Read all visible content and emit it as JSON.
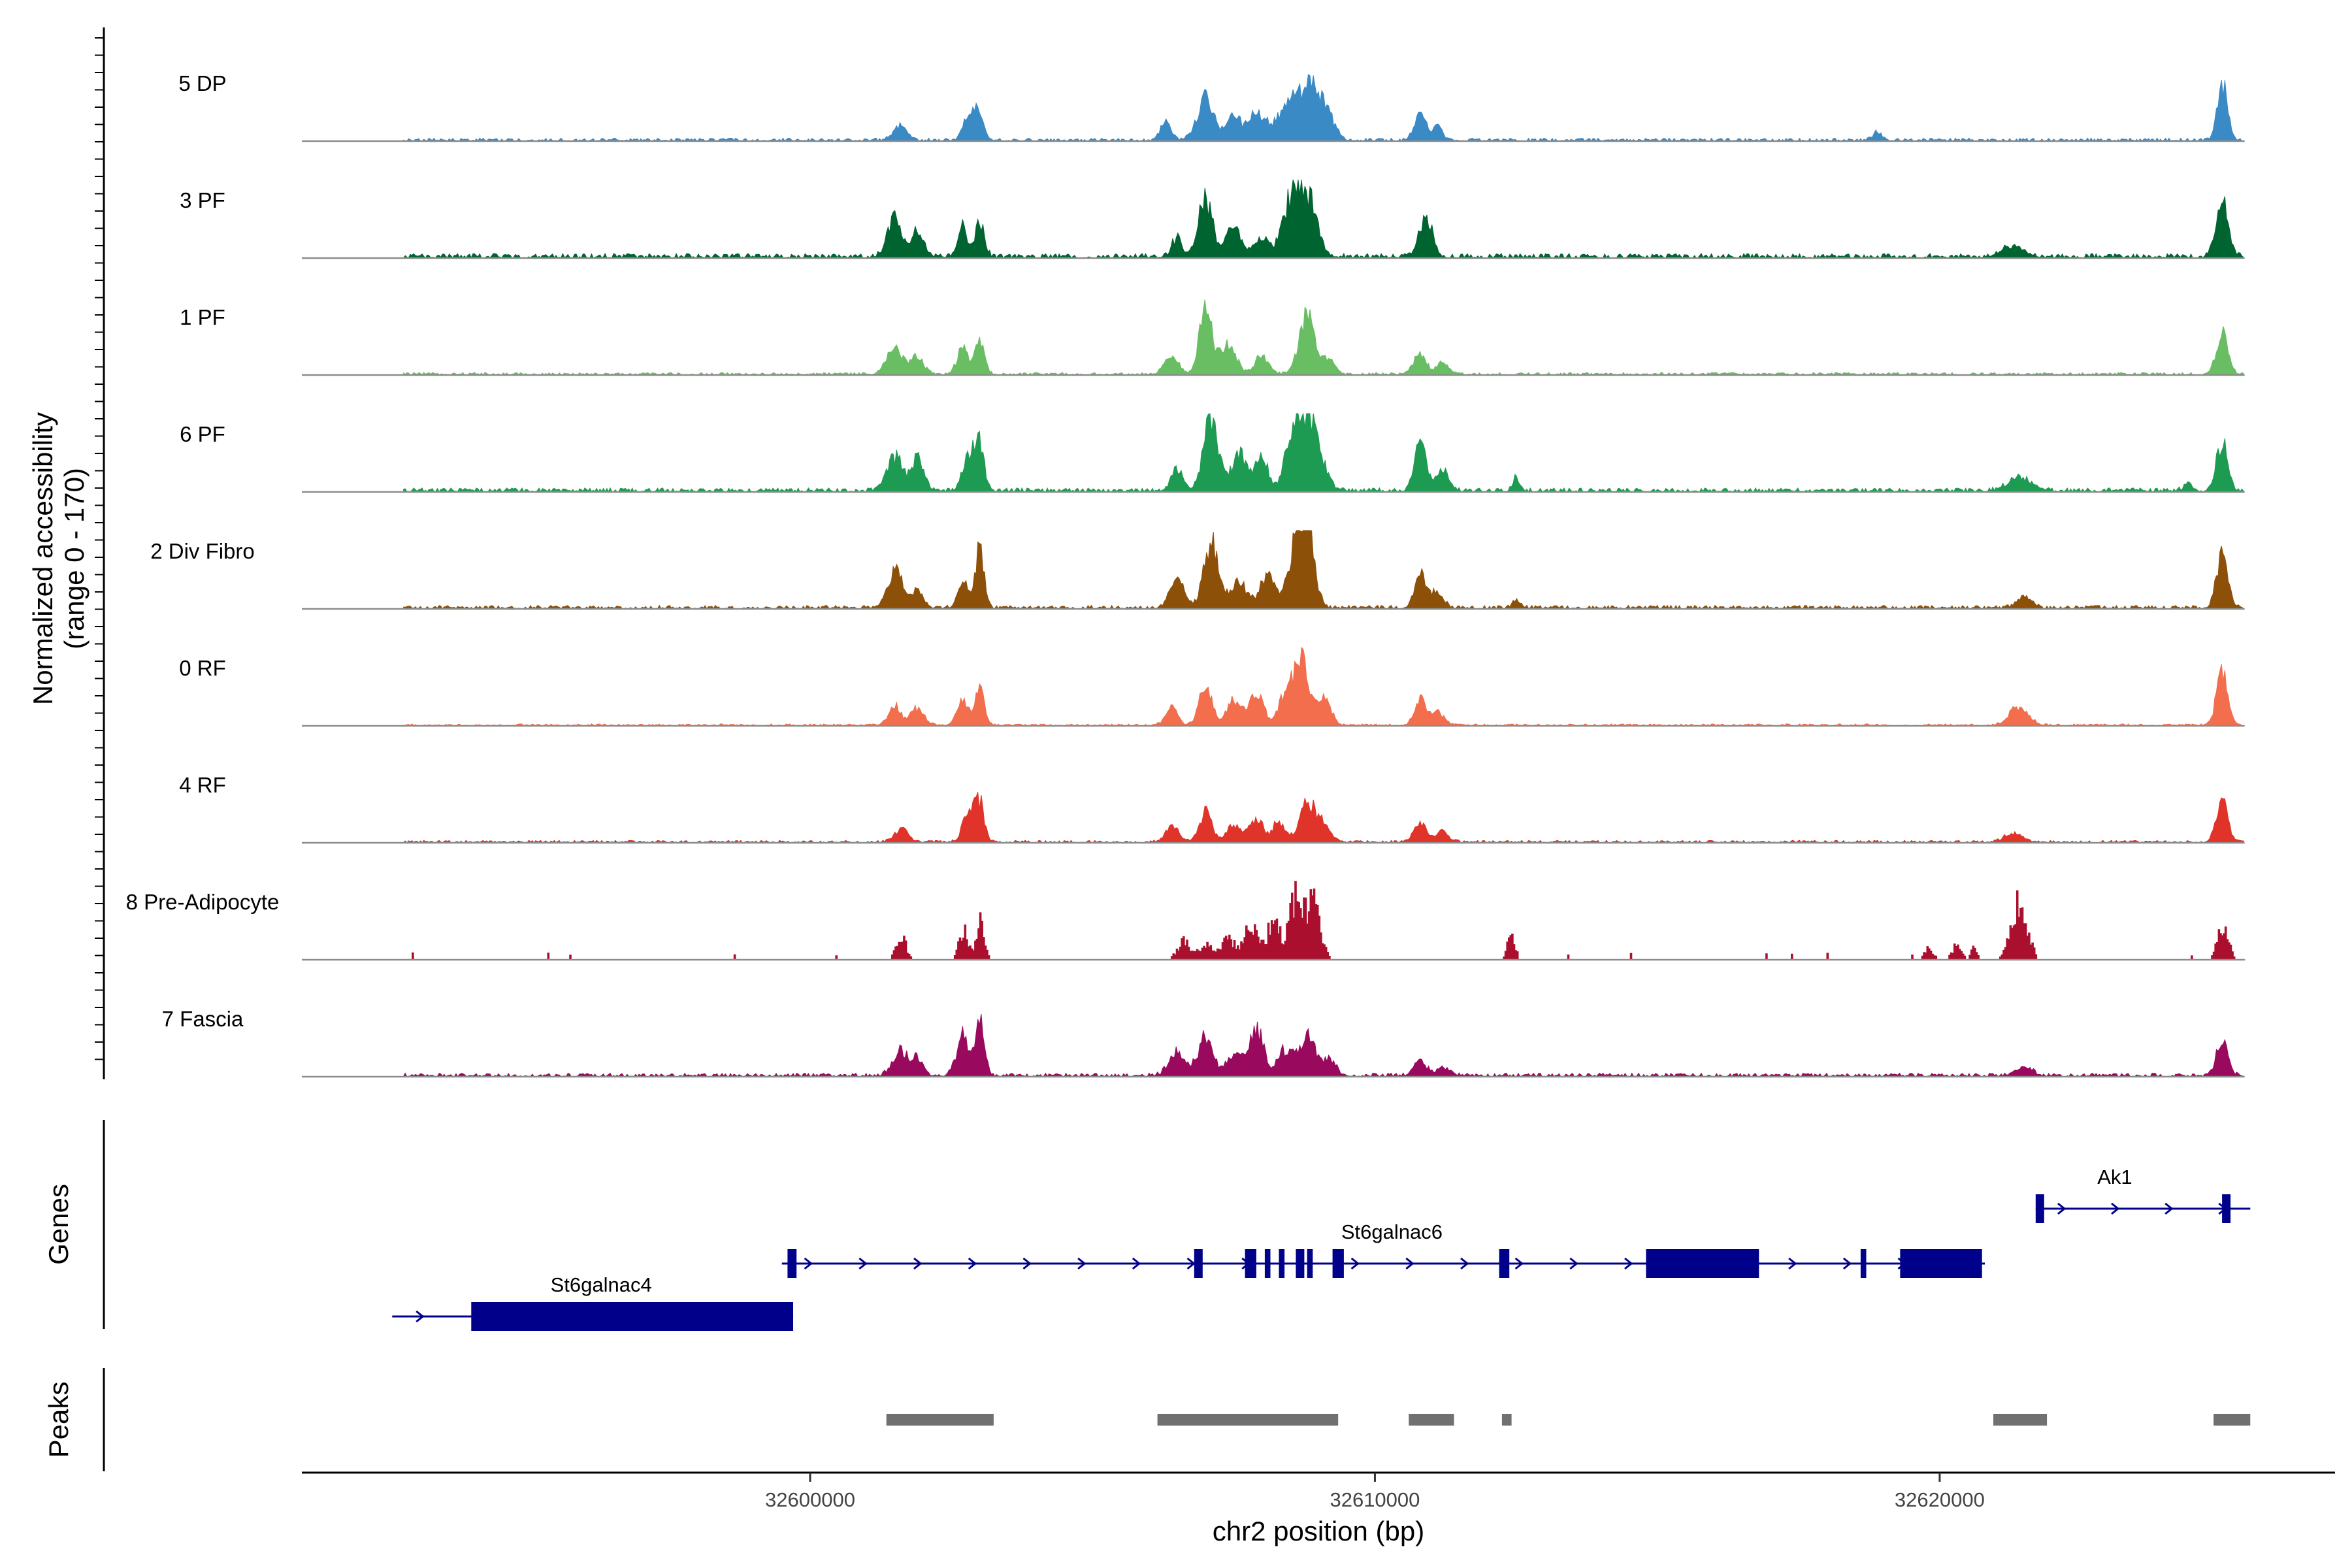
{
  "chart_data": {
    "type": "area",
    "region": {
      "chromosome": "chr2",
      "start": 32591000,
      "end": 32627000
    },
    "ylabel_line1": "Normalized accessibility",
    "ylabel_line2": "(range 0 - 170)",
    "y_range": [
      0,
      170
    ],
    "xlabel": "chr2 position (bp)",
    "x_ticks": [
      {
        "value": 32600000,
        "label": "32600000"
      },
      {
        "value": 32610000,
        "label": "32610000"
      },
      {
        "value": 32620000,
        "label": "32620000"
      }
    ],
    "tracks_start": 32592800,
    "tracks_end": 32625400,
    "series": [
      {
        "name": "5 DP",
        "color": "#3A8AC6",
        "peaks": [
          [
            32601600,
            35,
            120
          ],
          [
            32602800,
            60,
            90
          ],
          [
            32603000,
            70,
            80
          ],
          [
            32606300,
            45,
            90
          ],
          [
            32607000,
            95,
            150
          ],
          [
            32607500,
            55,
            120
          ],
          [
            32607900,
            65,
            150
          ],
          [
            32608500,
            90,
            220
          ],
          [
            32608900,
            115,
            180
          ],
          [
            32609200,
            35,
            120
          ],
          [
            32610800,
            58,
            100
          ],
          [
            32611100,
            38,
            80
          ],
          [
            32618900,
            18,
            80
          ],
          [
            32625000,
            130,
            90
          ]
        ],
        "bg": 6,
        "sparse": false
      },
      {
        "name": "3 PF",
        "color": "#006430",
        "peaks": [
          [
            32601500,
            90,
            130
          ],
          [
            32601900,
            55,
            110
          ],
          [
            32602700,
            70,
            90
          ],
          [
            32603000,
            80,
            80
          ],
          [
            32606500,
            45,
            90
          ],
          [
            32607000,
            135,
            120
          ],
          [
            32607500,
            70,
            140
          ],
          [
            32608000,
            45,
            120
          ],
          [
            32608500,
            115,
            150
          ],
          [
            32608800,
            140,
            170
          ],
          [
            32610900,
            95,
            110
          ],
          [
            32621300,
            25,
            200
          ],
          [
            32625000,
            125,
            110
          ]
        ],
        "bg": 9,
        "sparse": false
      },
      {
        "name": "1 PF",
        "color": "#69BE63",
        "peaks": [
          [
            32601500,
            65,
            140
          ],
          [
            32601900,
            40,
            110
          ],
          [
            32602700,
            60,
            100
          ],
          [
            32603000,
            85,
            80
          ],
          [
            32606400,
            40,
            120
          ],
          [
            32607000,
            165,
            110
          ],
          [
            32607400,
            70,
            140
          ],
          [
            32608000,
            45,
            120
          ],
          [
            32608800,
            140,
            140
          ],
          [
            32609200,
            35,
            100
          ],
          [
            32610800,
            45,
            110
          ],
          [
            32611200,
            25,
            110
          ],
          [
            32625000,
            95,
            100
          ]
        ],
        "bg": 5,
        "sparse": false
      },
      {
        "name": "6 PF",
        "color": "#1E9B52",
        "peaks": [
          [
            32601500,
            80,
            140
          ],
          [
            32601900,
            70,
            110
          ],
          [
            32602800,
            80,
            100
          ],
          [
            32603000,
            120,
            80
          ],
          [
            32606500,
            55,
            100
          ],
          [
            32607100,
            170,
            130
          ],
          [
            32607600,
            90,
            130
          ],
          [
            32608000,
            75,
            110
          ],
          [
            32608600,
            150,
            160
          ],
          [
            32608900,
            135,
            170
          ],
          [
            32610800,
            115,
            100
          ],
          [
            32611200,
            50,
            110
          ],
          [
            32612500,
            28,
            60
          ],
          [
            32621400,
            30,
            200
          ],
          [
            32624400,
            18,
            80
          ],
          [
            32625000,
            115,
            100
          ]
        ],
        "bg": 8,
        "sparse": false
      },
      {
        "name": "2 Div Fibro",
        "color": "#8C5009",
        "peaks": [
          [
            32601500,
            85,
            130
          ],
          [
            32601900,
            40,
            110
          ],
          [
            32602700,
            60,
            90
          ],
          [
            32603000,
            130,
            80
          ],
          [
            32606500,
            70,
            120
          ],
          [
            32607100,
            150,
            130
          ],
          [
            32607600,
            60,
            140
          ],
          [
            32608100,
            75,
            130
          ],
          [
            32608600,
            130,
            140
          ],
          [
            32608800,
            175,
            130
          ],
          [
            32610800,
            80,
            100
          ],
          [
            32611100,
            35,
            110
          ],
          [
            32612500,
            18,
            60
          ],
          [
            32621500,
            28,
            120
          ],
          [
            32625000,
            115,
            100
          ]
        ],
        "bg": 7,
        "sparse": false
      },
      {
        "name": "0 RF",
        "color": "#F26E4C",
        "peaks": [
          [
            32601500,
            45,
            110
          ],
          [
            32601900,
            40,
            110
          ],
          [
            32602700,
            60,
            100
          ],
          [
            32603000,
            80,
            80
          ],
          [
            32606400,
            40,
            110
          ],
          [
            32607000,
            100,
            110
          ],
          [
            32607500,
            60,
            120
          ],
          [
            32607900,
            70,
            130
          ],
          [
            32608400,
            65,
            110
          ],
          [
            32608700,
            175,
            130
          ],
          [
            32609100,
            60,
            120
          ],
          [
            32610800,
            60,
            100
          ],
          [
            32611100,
            35,
            110
          ],
          [
            32621400,
            45,
            160
          ],
          [
            32625000,
            125,
            100
          ]
        ],
        "bg": 4,
        "sparse": false
      },
      {
        "name": "4 RF",
        "color": "#E0342A",
        "peaks": [
          [
            32601600,
            30,
            120
          ],
          [
            32602800,
            65,
            100
          ],
          [
            32603000,
            95,
            80
          ],
          [
            32606400,
            40,
            110
          ],
          [
            32607000,
            70,
            110
          ],
          [
            32607500,
            40,
            120
          ],
          [
            32607900,
            55,
            120
          ],
          [
            32608300,
            45,
            110
          ],
          [
            32608800,
            100,
            130
          ],
          [
            32609100,
            40,
            120
          ],
          [
            32610800,
            45,
            100
          ],
          [
            32611200,
            25,
            110
          ],
          [
            32621300,
            22,
            140
          ],
          [
            32625000,
            95,
            100
          ]
        ],
        "bg": 5,
        "sparse": false
      },
      {
        "name": "8 Pre-Adipocyte",
        "color": "#AA0F2D",
        "peaks": [
          [
            32601600,
            55,
            90
          ],
          [
            32602700,
            75,
            80
          ],
          [
            32603000,
            90,
            70
          ],
          [
            32606600,
            45,
            110
          ],
          [
            32607000,
            40,
            120
          ],
          [
            32607400,
            55,
            120
          ],
          [
            32607800,
            85,
            120
          ],
          [
            32608200,
            120,
            100
          ],
          [
            32608600,
            165,
            120
          ],
          [
            32608900,
            130,
            120
          ],
          [
            32612400,
            60,
            70
          ],
          [
            32619800,
            28,
            80
          ],
          [
            32620300,
            40,
            80
          ],
          [
            32620600,
            30,
            60
          ],
          [
            32621400,
            145,
            140
          ],
          [
            32625000,
            95,
            90
          ]
        ],
        "bg": 0,
        "sparse": true
      },
      {
        "name": "7 Fascia",
        "color": "#990A5F",
        "peaks": [
          [
            32601600,
            55,
            140
          ],
          [
            32601900,
            40,
            100
          ],
          [
            32602700,
            90,
            110
          ],
          [
            32603000,
            135,
            80
          ],
          [
            32606500,
            60,
            140
          ],
          [
            32607000,
            90,
            130
          ],
          [
            32607500,
            50,
            140
          ],
          [
            32607900,
            110,
            130
          ],
          [
            32608400,
            60,
            120
          ],
          [
            32608800,
            100,
            140
          ],
          [
            32609200,
            35,
            120
          ],
          [
            32610800,
            35,
            110
          ],
          [
            32611200,
            20,
            110
          ],
          [
            32621500,
            20,
            140
          ],
          [
            32625000,
            80,
            100
          ]
        ],
        "bg": 7,
        "sparse": false
      }
    ],
    "genes": {
      "title": "Genes",
      "color": "#00008B",
      "items": [
        {
          "name": "St6galnac4",
          "start": 32592600,
          "end": 32599700,
          "row": 2,
          "exons": [
            [
              32594000,
              32599700
            ]
          ]
        },
        {
          "name": "St6galnac6",
          "start": 32599500,
          "end": 32620800,
          "row": 1,
          "exons": [
            [
              32599600,
              32599760
            ],
            [
              32606800,
              32606950
            ],
            [
              32607700,
              32607900
            ],
            [
              32608050,
              32608150
            ],
            [
              32608300,
              32608400
            ],
            [
              32608600,
              32608750
            ],
            [
              32608800,
              32608900
            ],
            [
              32609250,
              32609450
            ],
            [
              32612200,
              32612380
            ],
            [
              32614800,
              32616800
            ],
            [
              32618600,
              32618700
            ],
            [
              32619300,
              32620750
            ]
          ]
        },
        {
          "name": "Ak1",
          "start": 32621700,
          "end": 32625500,
          "row": 0,
          "exons": [
            [
              32621700,
              32621850
            ],
            [
              32625000,
              32625150
            ]
          ]
        }
      ]
    },
    "peaks_track": {
      "title": "Peaks",
      "color": "#707070",
      "regions": [
        [
          32601350,
          32603250
        ],
        [
          32606150,
          32609350
        ],
        [
          32610600,
          32611400
        ],
        [
          32612250,
          32612420
        ],
        [
          32620950,
          32621900
        ],
        [
          32624850,
          32625500
        ]
      ]
    }
  }
}
